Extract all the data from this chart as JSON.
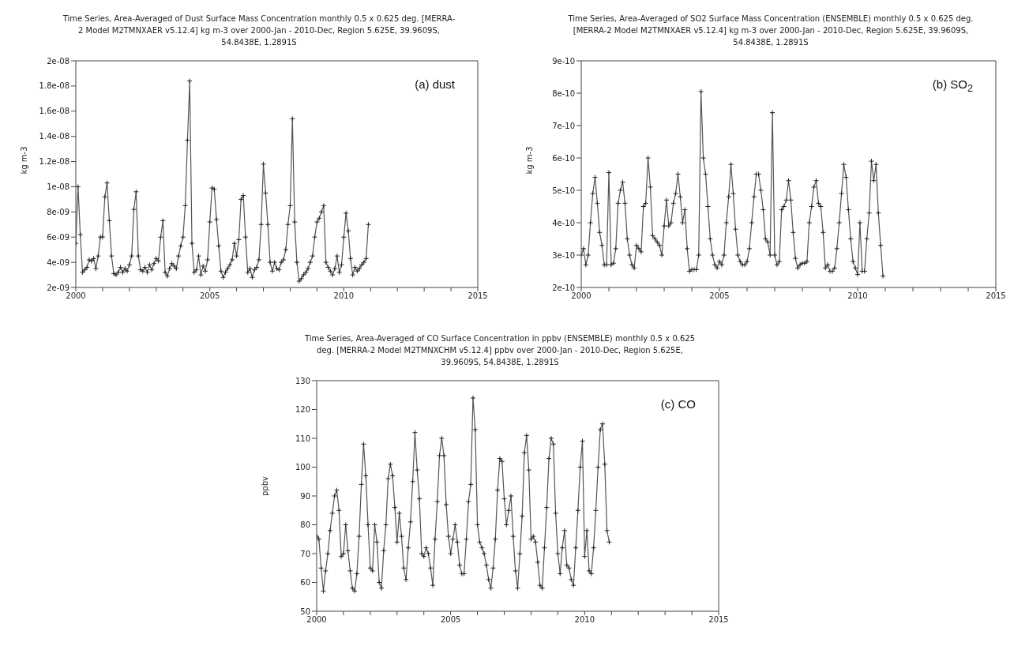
{
  "chart_data": [
    {
      "type": "line",
      "title": "Time Series, Area-Averaged of Dust Surface Mass Concentration monthly 0.5 x 0.625 deg. [MERRA-2 Model M2TMNXAER v5.12.4] kg m-3 over 2000-Jan - 2010-Dec, Region 5.625E, 39.9609S, 54.8438E, 1.2891S",
      "ylabel": "kg m-3",
      "annotations": [
        "(a) dust"
      ],
      "marker": "cross",
      "line_style": "solid",
      "x": [
        "2000-01",
        "2000-02",
        "2000-03",
        "2000-04",
        "2000-05",
        "2000-06",
        "2000-07",
        "2000-08",
        "2000-09",
        "2000-10",
        "2000-11",
        "2000-12",
        "2001-01",
        "2001-02",
        "2001-03",
        "2001-04",
        "2001-05",
        "2001-06",
        "2001-07",
        "2001-08",
        "2001-09",
        "2001-10",
        "2001-11",
        "2001-12",
        "2002-01",
        "2002-02",
        "2002-03",
        "2002-04",
        "2002-05",
        "2002-06",
        "2002-07",
        "2002-08",
        "2002-09",
        "2002-10",
        "2002-11",
        "2002-12",
        "2003-01",
        "2003-02",
        "2003-03",
        "2003-04",
        "2003-05",
        "2003-06",
        "2003-07",
        "2003-08",
        "2003-09",
        "2003-10",
        "2003-11",
        "2003-12",
        "2004-01",
        "2004-02",
        "2004-03",
        "2004-04",
        "2004-05",
        "2004-06",
        "2004-07",
        "2004-08",
        "2004-09",
        "2004-10",
        "2004-11",
        "2004-12",
        "2005-01",
        "2005-02",
        "2005-03",
        "2005-04",
        "2005-05",
        "2005-06",
        "2005-07",
        "2005-08",
        "2005-09",
        "2005-10",
        "2005-11",
        "2005-12",
        "2006-01",
        "2006-02",
        "2006-03",
        "2006-04",
        "2006-05",
        "2006-06",
        "2006-07",
        "2006-08",
        "2006-09",
        "2006-10",
        "2006-11",
        "2006-12",
        "2007-01",
        "2007-02",
        "2007-03",
        "2007-04",
        "2007-05",
        "2007-06",
        "2007-07",
        "2007-08",
        "2007-09",
        "2007-10",
        "2007-11",
        "2007-12",
        "2008-01",
        "2008-02",
        "2008-03",
        "2008-04",
        "2008-05",
        "2008-06",
        "2008-07",
        "2008-08",
        "2008-09",
        "2008-10",
        "2008-11",
        "2008-12",
        "2009-01",
        "2009-02",
        "2009-03",
        "2009-04",
        "2009-05",
        "2009-06",
        "2009-07",
        "2009-08",
        "2009-09",
        "2009-10",
        "2009-11",
        "2009-12",
        "2010-01",
        "2010-02",
        "2010-03",
        "2010-04",
        "2010-05",
        "2010-06",
        "2010-07",
        "2010-08",
        "2010-09",
        "2010-10",
        "2010-11",
        "2010-12"
      ],
      "series": [
        {
          "color": "#555555",
          "values": [
            5.5e-09,
            1e-08,
            6.2e-09,
            3.2e-09,
            3.4e-09,
            3.6e-09,
            4.2e-09,
            4.1e-09,
            4.3e-09,
            3.5e-09,
            4.5e-09,
            6e-09,
            6e-09,
            9.2e-09,
            1.03e-08,
            7.3e-09,
            4.5e-09,
            3.1e-09,
            3e-09,
            3.2e-09,
            3.6e-09,
            3.2e-09,
            3.5e-09,
            3.3e-09,
            3.8e-09,
            4.5e-09,
            8.2e-09,
            9.6e-09,
            4.5e-09,
            3.4e-09,
            3.3e-09,
            3.6e-09,
            3.2e-09,
            3.8e-09,
            3.4e-09,
            3.9e-09,
            4.3e-09,
            4.1e-09,
            6e-09,
            7.3e-09,
            3.2e-09,
            2.9e-09,
            3.5e-09,
            3.9e-09,
            3.7e-09,
            3.5e-09,
            4.5e-09,
            5.3e-09,
            6e-09,
            8.5e-09,
            1.37e-08,
            1.84e-08,
            5.5e-09,
            3.2e-09,
            3.4e-09,
            4.5e-09,
            3e-09,
            3.7e-09,
            3.3e-09,
            4.2e-09,
            7.2e-09,
            9.9e-09,
            9.8e-09,
            7.4e-09,
            5.3e-09,
            3.3e-09,
            2.8e-09,
            3.2e-09,
            3.5e-09,
            3.8e-09,
            4.2e-09,
            5.5e-09,
            4.5e-09,
            5.8e-09,
            9e-09,
            9.3e-09,
            6e-09,
            3.2e-09,
            3.5e-09,
            2.8e-09,
            3.4e-09,
            3.6e-09,
            4.2e-09,
            7e-09,
            1.18e-08,
            9.5e-09,
            7e-09,
            4e-09,
            3.3e-09,
            4e-09,
            3.5e-09,
            3.4e-09,
            4e-09,
            4.2e-09,
            5e-09,
            7e-09,
            8.5e-09,
            1.54e-08,
            7.2e-09,
            4e-09,
            2.5e-09,
            2.7e-09,
            3e-09,
            3.2e-09,
            3.5e-09,
            4e-09,
            4.5e-09,
            6e-09,
            7.2e-09,
            7.5e-09,
            8e-09,
            8.5e-09,
            4e-09,
            3.6e-09,
            3.3e-09,
            3e-09,
            3.5e-09,
            4.5e-09,
            3.2e-09,
            3.8e-09,
            6e-09,
            7.9e-09,
            6.5e-09,
            4.3e-09,
            3e-09,
            3.6e-09,
            3.3e-09,
            3.5e-09,
            3.8e-09,
            4e-09,
            4.3e-09,
            7e-09
          ]
        }
      ],
      "xlim": [
        "2000",
        "2015"
      ],
      "xticks": [
        "2000",
        {
          "value": "2001",
          "label": null
        },
        {
          "value": "2002",
          "label": null
        },
        {
          "value": "2003",
          "label": null
        },
        {
          "value": "2004",
          "label": null
        },
        "2005",
        {
          "value": "2006",
          "label": null
        },
        {
          "value": "2007",
          "label": null
        },
        {
          "value": "2008",
          "label": null
        },
        {
          "value": "2009",
          "label": null
        },
        "2010",
        {
          "value": "2011",
          "label": null
        },
        {
          "value": "2012",
          "label": null
        },
        {
          "value": "2013",
          "label": null
        },
        {
          "value": "2014",
          "label": null
        },
        "2015"
      ],
      "ylim": [
        2e-09,
        2e-08
      ],
      "yticks": [
        {
          "value": 2e-09,
          "label": "2e-09"
        },
        {
          "value": 4e-09,
          "label": "4e-09"
        },
        {
          "value": 6e-09,
          "label": "6e-09"
        },
        {
          "value": 8e-09,
          "label": "8e-09"
        },
        {
          "value": 1e-08,
          "label": "1e-08"
        },
        {
          "value": 1.2e-08,
          "label": "1.2e-08"
        },
        {
          "value": 1.4e-08,
          "label": "1.4e-08"
        },
        {
          "value": 1.6e-08,
          "label": "1.6e-08"
        },
        {
          "value": 1.8e-08,
          "label": "1.8e-08"
        },
        {
          "value": 2e-08,
          "label": "2e-08"
        }
      ]
    },
    {
      "type": "line",
      "title": "Time Series, Area-Averaged of SO2 Surface Mass Concentration (ENSEMBLE) monthly 0.5 x 0.625 deg. [MERRA-2 Model M2TMNXAER v5.12.4] kg m-3 over 2000-Jan - 2010-Dec, Region 5.625E, 39.9609S, 54.8438E, 1.2891S",
      "ylabel": "kg m-3",
      "annotations": [
        "(b) SO$_{2}$"
      ],
      "marker": "cross",
      "line_style": "solid",
      "x": [
        "2000-01",
        "2000-02",
        "2000-03",
        "2000-04",
        "2000-05",
        "2000-06",
        "2000-07",
        "2000-08",
        "2000-09",
        "2000-10",
        "2000-11",
        "2000-12",
        "2001-01",
        "2001-02",
        "2001-03",
        "2001-04",
        "2001-05",
        "2001-06",
        "2001-07",
        "2001-08",
        "2001-09",
        "2001-10",
        "2001-11",
        "2001-12",
        "2002-01",
        "2002-02",
        "2002-03",
        "2002-04",
        "2002-05",
        "2002-06",
        "2002-07",
        "2002-08",
        "2002-09",
        "2002-10",
        "2002-11",
        "2002-12",
        "2003-01",
        "2003-02",
        "2003-03",
        "2003-04",
        "2003-05",
        "2003-06",
        "2003-07",
        "2003-08",
        "2003-09",
        "2003-10",
        "2003-11",
        "2003-12",
        "2004-01",
        "2004-02",
        "2004-03",
        "2004-04",
        "2004-05",
        "2004-06",
        "2004-07",
        "2004-08",
        "2004-09",
        "2004-10",
        "2004-11",
        "2004-12",
        "2005-01",
        "2005-02",
        "2005-03",
        "2005-04",
        "2005-05",
        "2005-06",
        "2005-07",
        "2005-08",
        "2005-09",
        "2005-10",
        "2005-11",
        "2005-12",
        "2006-01",
        "2006-02",
        "2006-03",
        "2006-04",
        "2006-05",
        "2006-06",
        "2006-07",
        "2006-08",
        "2006-09",
        "2006-10",
        "2006-11",
        "2006-12",
        "2007-01",
        "2007-02",
        "2007-03",
        "2007-04",
        "2007-05",
        "2007-06",
        "2007-07",
        "2007-08",
        "2007-09",
        "2007-10",
        "2007-11",
        "2007-12",
        "2008-01",
        "2008-02",
        "2008-03",
        "2008-04",
        "2008-05",
        "2008-06",
        "2008-07",
        "2008-08",
        "2008-09",
        "2008-10",
        "2008-11",
        "2008-12",
        "2009-01",
        "2009-02",
        "2009-03",
        "2009-04",
        "2009-05",
        "2009-06",
        "2009-07",
        "2009-08",
        "2009-09",
        "2009-10",
        "2009-11",
        "2009-12",
        "2010-01",
        "2010-02",
        "2010-03",
        "2010-04",
        "2010-05",
        "2010-06",
        "2010-07",
        "2010-08",
        "2010-09",
        "2010-10",
        "2010-11",
        "2010-12"
      ],
      "series": [
        {
          "color": "#555555",
          "values": [
            3e-10,
            3.2e-10,
            2.7e-10,
            3e-10,
            4e-10,
            4.9e-10,
            5.4e-10,
            4.6e-10,
            3.7e-10,
            3.3e-10,
            2.7e-10,
            2.7e-10,
            5.55e-10,
            2.7e-10,
            2.75e-10,
            3.2e-10,
            4.6e-10,
            5e-10,
            5.25e-10,
            4.6e-10,
            3.5e-10,
            3e-10,
            2.7e-10,
            2.6e-10,
            3.3e-10,
            3.2e-10,
            3.1e-10,
            4.5e-10,
            4.6e-10,
            6e-10,
            5.1e-10,
            3.6e-10,
            3.5e-10,
            3.4e-10,
            3.3e-10,
            3e-10,
            3.9e-10,
            4.7e-10,
            3.9e-10,
            4e-10,
            4.6e-10,
            4.9e-10,
            5.5e-10,
            4.8e-10,
            4e-10,
            4.4e-10,
            3.2e-10,
            2.5e-10,
            2.55e-10,
            2.55e-10,
            2.55e-10,
            3e-10,
            8.05e-10,
            6e-10,
            5.5e-10,
            4.5e-10,
            3.5e-10,
            3e-10,
            2.7e-10,
            2.6e-10,
            2.8e-10,
            2.7e-10,
            3e-10,
            4e-10,
            4.8e-10,
            5.8e-10,
            4.9e-10,
            3.8e-10,
            3e-10,
            2.8e-10,
            2.7e-10,
            2.7e-10,
            2.8e-10,
            3.2e-10,
            4e-10,
            4.8e-10,
            5.5e-10,
            5.5e-10,
            5e-10,
            4.4e-10,
            3.5e-10,
            3.4e-10,
            3e-10,
            7.4e-10,
            3e-10,
            2.7e-10,
            2.8e-10,
            4.4e-10,
            4.5e-10,
            4.7e-10,
            5.3e-10,
            4.7e-10,
            3.7e-10,
            2.9e-10,
            2.6e-10,
            2.7e-10,
            2.75e-10,
            2.75e-10,
            2.8e-10,
            4e-10,
            4.5e-10,
            5.1e-10,
            5.3e-10,
            4.6e-10,
            4.5e-10,
            3.7e-10,
            2.6e-10,
            2.7e-10,
            2.5e-10,
            2.5e-10,
            2.6e-10,
            3.2e-10,
            4e-10,
            4.9e-10,
            5.8e-10,
            5.4e-10,
            4.4e-10,
            3.5e-10,
            2.8e-10,
            2.6e-10,
            2.4e-10,
            4e-10,
            2.5e-10,
            2.5e-10,
            3.5e-10,
            4.3e-10,
            5.9e-10,
            5.3e-10,
            5.8e-10,
            4.3e-10,
            3.3e-10,
            2.35e-10
          ]
        }
      ],
      "xlim": [
        "2000",
        "2015"
      ],
      "xticks": [
        "2000",
        {
          "value": "2001",
          "label": null
        },
        {
          "value": "2002",
          "label": null
        },
        {
          "value": "2003",
          "label": null
        },
        {
          "value": "2004",
          "label": null
        },
        "2005",
        {
          "value": "2006",
          "label": null
        },
        {
          "value": "2007",
          "label": null
        },
        {
          "value": "2008",
          "label": null
        },
        {
          "value": "2009",
          "label": null
        },
        "2010",
        {
          "value": "2011",
          "label": null
        },
        {
          "value": "2012",
          "label": null
        },
        {
          "value": "2013",
          "label": null
        },
        {
          "value": "2014",
          "label": null
        },
        "2015"
      ],
      "ylim": [
        2e-10,
        9e-10
      ],
      "yticks": [
        {
          "value": 2e-10,
          "label": "2e-10"
        },
        {
          "value": 3e-10,
          "label": "3e-10"
        },
        {
          "value": 4e-10,
          "label": "4e-10"
        },
        {
          "value": 5e-10,
          "label": "5e-10"
        },
        {
          "value": 6e-10,
          "label": "6e-10"
        },
        {
          "value": 7e-10,
          "label": "7e-10"
        },
        {
          "value": 8e-10,
          "label": "8e-10"
        },
        {
          "value": 9e-10,
          "label": "9e-10"
        }
      ]
    },
    {
      "type": "line",
      "title": "Time Series, Area-Averaged of CO Surface Concentration in ppbv (ENSEMBLE) monthly 0.5 x 0.625 deg. [MERRA-2 Model M2TMNXCHM v5.12.4] ppbv over 2000-Jan - 2010-Dec, Region 5.625E, 39.9609S, 54.8438E, 1.2891S",
      "ylabel": "ppbv",
      "annotations": [
        "(c) CO"
      ],
      "marker": "cross",
      "line_style": "solid",
      "x": [
        "2000-01",
        "2000-02",
        "2000-03",
        "2000-04",
        "2000-05",
        "2000-06",
        "2000-07",
        "2000-08",
        "2000-09",
        "2000-10",
        "2000-11",
        "2000-12",
        "2001-01",
        "2001-02",
        "2001-03",
        "2001-04",
        "2001-05",
        "2001-06",
        "2001-07",
        "2001-08",
        "2001-09",
        "2001-10",
        "2001-11",
        "2001-12",
        "2002-01",
        "2002-02",
        "2002-03",
        "2002-04",
        "2002-05",
        "2002-06",
        "2002-07",
        "2002-08",
        "2002-09",
        "2002-10",
        "2002-11",
        "2002-12",
        "2003-01",
        "2003-02",
        "2003-03",
        "2003-04",
        "2003-05",
        "2003-06",
        "2003-07",
        "2003-08",
        "2003-09",
        "2003-10",
        "2003-11",
        "2003-12",
        "2004-01",
        "2004-02",
        "2004-03",
        "2004-04",
        "2004-05",
        "2004-06",
        "2004-07",
        "2004-08",
        "2004-09",
        "2004-10",
        "2004-11",
        "2004-12",
        "2005-01",
        "2005-02",
        "2005-03",
        "2005-04",
        "2005-05",
        "2005-06",
        "2005-07",
        "2005-08",
        "2005-09",
        "2005-10",
        "2005-11",
        "2005-12",
        "2006-01",
        "2006-02",
        "2006-03",
        "2006-04",
        "2006-05",
        "2006-06",
        "2006-07",
        "2006-08",
        "2006-09",
        "2006-10",
        "2006-11",
        "2006-12",
        "2007-01",
        "2007-02",
        "2007-03",
        "2007-04",
        "2007-05",
        "2007-06",
        "2007-07",
        "2007-08",
        "2007-09",
        "2007-10",
        "2007-11",
        "2007-12",
        "2008-01",
        "2008-02",
        "2008-03",
        "2008-04",
        "2008-05",
        "2008-06",
        "2008-07",
        "2008-08",
        "2008-09",
        "2008-10",
        "2008-11",
        "2008-12",
        "2009-01",
        "2009-02",
        "2009-03",
        "2009-04",
        "2009-05",
        "2009-06",
        "2009-07",
        "2009-08",
        "2009-09",
        "2009-10",
        "2009-11",
        "2009-12",
        "2010-01",
        "2010-02",
        "2010-03",
        "2010-04",
        "2010-05",
        "2010-06",
        "2010-07",
        "2010-08",
        "2010-09",
        "2010-10",
        "2010-11",
        "2010-12"
      ],
      "series": [
        {
          "color": "#555555",
          "values": [
            76,
            75,
            65,
            57,
            64,
            70,
            78,
            84,
            90,
            92,
            85,
            69,
            70,
            80,
            71,
            64,
            58,
            57,
            63,
            76,
            94,
            108,
            97,
            80,
            65,
            64,
            80,
            74,
            60,
            58,
            71,
            80,
            96,
            101,
            97,
            86,
            74,
            84,
            76,
            65,
            61,
            72,
            81,
            95,
            112,
            99,
            89,
            70,
            69,
            72,
            70,
            65,
            59,
            75,
            88,
            104,
            110,
            104,
            87,
            76,
            70,
            75,
            80,
            74,
            66,
            63,
            63,
            75,
            88,
            94,
            124,
            113,
            80,
            74,
            72,
            70,
            66,
            61,
            58,
            65,
            75,
            92,
            103,
            102,
            89,
            80,
            85,
            90,
            76,
            64,
            58,
            70,
            83,
            105,
            111,
            99,
            75,
            76,
            74,
            67,
            59,
            58,
            72,
            86,
            103,
            110,
            108,
            84,
            70,
            63,
            72,
            78,
            66,
            65,
            61,
            59,
            72,
            85,
            100,
            109,
            69,
            78,
            64,
            63,
            72,
            85,
            100,
            113,
            115,
            101,
            78,
            74
          ]
        }
      ],
      "xlim": [
        "2000",
        "2015"
      ],
      "xticks": [
        "2000",
        {
          "value": "2001",
          "label": null
        },
        {
          "value": "2002",
          "label": null
        },
        {
          "value": "2003",
          "label": null
        },
        {
          "value": "2004",
          "label": null
        },
        "2005",
        {
          "value": "2006",
          "label": null
        },
        {
          "value": "2007",
          "label": null
        },
        {
          "value": "2008",
          "label": null
        },
        {
          "value": "2009",
          "label": null
        },
        "2010",
        {
          "value": "2011",
          "label": null
        },
        {
          "value": "2012",
          "label": null
        },
        {
          "value": "2013",
          "label": null
        },
        {
          "value": "2014",
          "label": null
        },
        "2015"
      ],
      "ylim": [
        50,
        130
      ],
      "yticks": [
        50,
        60,
        70,
        80,
        90,
        100,
        110,
        120,
        130
      ]
    }
  ]
}
